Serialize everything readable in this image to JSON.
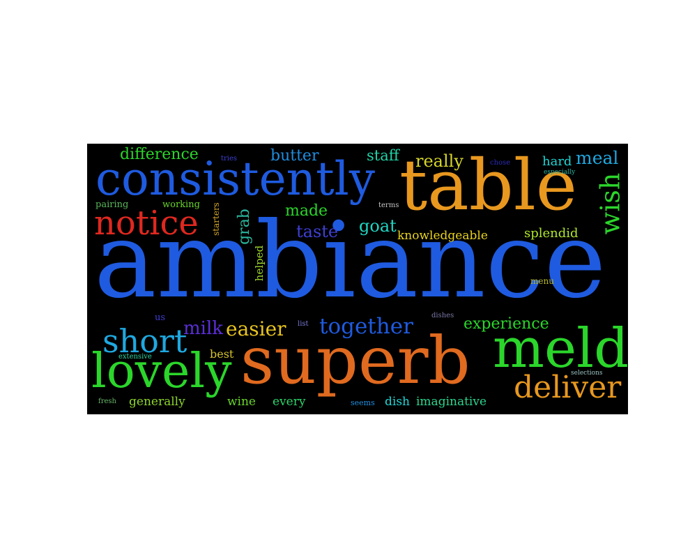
{
  "background": "#000000",
  "page_background": "#ffffff",
  "words": [
    {
      "id": "ambiance",
      "text": "ambiance",
      "color": "#1f5be0"
    },
    {
      "id": "superb",
      "text": "superb",
      "color": "#e06a1f"
    },
    {
      "id": "table",
      "text": "table",
      "color": "#e8981f"
    },
    {
      "id": "consistently",
      "text": "consistently",
      "color": "#1f5be0"
    },
    {
      "id": "notice",
      "text": "notice",
      "color": "#e0281f"
    },
    {
      "id": "meld",
      "text": "meld",
      "color": "#2bd62b"
    },
    {
      "id": "lovely",
      "text": "lovely",
      "color": "#2bd62b"
    },
    {
      "id": "deliver",
      "text": "deliver",
      "color": "#e8981f"
    },
    {
      "id": "short",
      "text": "short",
      "color": "#1fa8e0"
    },
    {
      "id": "together",
      "text": "together",
      "color": "#1f5be0"
    },
    {
      "id": "easier",
      "text": "easier",
      "color": "#e8c41f"
    },
    {
      "id": "milk",
      "text": "milk",
      "color": "#5a2fd6"
    },
    {
      "id": "experience",
      "text": "experience",
      "color": "#2bd62b"
    },
    {
      "id": "wish",
      "text": "wish",
      "color": "#2bd62b"
    },
    {
      "id": "difference",
      "text": "difference",
      "color": "#2bd62b"
    },
    {
      "id": "butter",
      "text": "butter",
      "color": "#1f8ee0"
    },
    {
      "id": "staff",
      "text": "staff",
      "color": "#1fd6a8"
    },
    {
      "id": "really",
      "text": "really",
      "color": "#d6d62b"
    },
    {
      "id": "meal",
      "text": "meal",
      "color": "#1fa8e0"
    },
    {
      "id": "hard",
      "text": "hard",
      "color": "#1fd6d6"
    },
    {
      "id": "made",
      "text": "made",
      "color": "#2bd62b"
    },
    {
      "id": "taste",
      "text": "taste",
      "color": "#3f3fd6"
    },
    {
      "id": "goat",
      "text": "goat",
      "color": "#1fd6c4"
    },
    {
      "id": "knowledgeable",
      "text": "knowledgeable",
      "color": "#e8d21f"
    },
    {
      "id": "splendid",
      "text": "splendid",
      "color": "#b0e82b"
    },
    {
      "id": "grab",
      "text": "grab",
      "color": "#2bb89e"
    },
    {
      "id": "helped",
      "text": "helped",
      "color": "#9ed62b"
    },
    {
      "id": "starters",
      "text": "starters",
      "color": "#d6a82b"
    },
    {
      "id": "pairing",
      "text": "pairing",
      "color": "#5ab85a"
    },
    {
      "id": "working",
      "text": "working",
      "color": "#6ad62b"
    },
    {
      "id": "tries",
      "text": "tries",
      "color": "#3f3fd6"
    },
    {
      "id": "chose",
      "text": "chose",
      "color": "#2b2bb8"
    },
    {
      "id": "especially",
      "text": "especially",
      "color": "#2bb8a0"
    },
    {
      "id": "terms",
      "text": "terms",
      "color": "#c4c4c4"
    },
    {
      "id": "menu",
      "text": "menu",
      "color": "#b8b82b"
    },
    {
      "id": "us",
      "text": "us",
      "color": "#3f3fd6"
    },
    {
      "id": "list",
      "text": "list",
      "color": "#7a7ad6"
    },
    {
      "id": "dishes",
      "text": "dishes",
      "color": "#7a7aa8"
    },
    {
      "id": "best",
      "text": "best",
      "color": "#d6c42b"
    },
    {
      "id": "extensive",
      "text": "extensive",
      "color": "#2bd6a0"
    },
    {
      "id": "selections",
      "text": "selections",
      "color": "#9ec4c4"
    },
    {
      "id": "fresh",
      "text": "fresh",
      "color": "#6ab86a"
    },
    {
      "id": "generally",
      "text": "generally",
      "color": "#8ed62b"
    },
    {
      "id": "wine",
      "text": "wine",
      "color": "#6ad62b"
    },
    {
      "id": "every",
      "text": "every",
      "color": "#2bd66a"
    },
    {
      "id": "seems",
      "text": "seems",
      "color": "#1f8ee0"
    },
    {
      "id": "dish",
      "text": "dish",
      "color": "#1fd6d6"
    },
    {
      "id": "imaginative",
      "text": "imaginative",
      "color": "#2bd68e"
    }
  ]
}
